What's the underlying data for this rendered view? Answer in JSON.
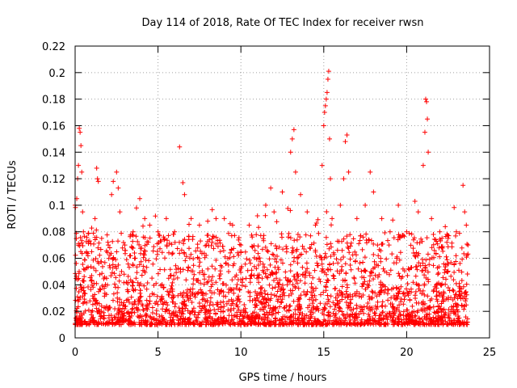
{
  "chart_data": {
    "type": "scatter",
    "title": "Day 114 of 2018, Rate Of TEC Index for receiver rwsn",
    "xlabel": "GPS time / hours",
    "ylabel": "ROTI / TECUs",
    "xlim": [
      0,
      25
    ],
    "ylim": [
      0,
      0.22
    ],
    "x_ticks": [
      0,
      5,
      10,
      15,
      20,
      25
    ],
    "y_ticks": [
      0,
      0.02,
      0.04,
      0.06,
      0.08,
      0.1,
      0.12,
      0.14,
      0.16,
      0.18,
      0.2,
      0.22
    ],
    "x_tick_labels": [
      "0",
      "5",
      "10",
      "15",
      "20",
      "25"
    ],
    "y_tick_labels": [
      "0",
      "0.02",
      "0.04",
      "0.06",
      "0.08",
      "0.1",
      "0.12",
      "0.14",
      "0.16",
      "0.18",
      "0.2",
      "0.22"
    ],
    "grid": true,
    "marker": "+",
    "marker_color": "#ff0000",
    "data_x_range": [
      0,
      23.7
    ],
    "typical_range": [
      0.01,
      0.07
    ],
    "series": [
      {
        "values": [
          [
            0.0,
            0.1
          ],
          [
            0.1,
            0.105
          ],
          [
            0.15,
            0.12
          ],
          [
            0.2,
            0.13
          ],
          [
            0.25,
            0.158
          ],
          [
            0.3,
            0.155
          ],
          [
            0.35,
            0.145
          ],
          [
            0.4,
            0.125
          ],
          [
            0.45,
            0.095
          ],
          [
            0.5,
            0.08
          ],
          [
            1.0,
            0.065
          ],
          [
            1.2,
            0.09
          ],
          [
            1.3,
            0.128
          ],
          [
            1.35,
            0.12
          ],
          [
            1.4,
            0.118
          ],
          [
            1.6,
            0.075
          ],
          [
            2.0,
            0.07
          ],
          [
            2.2,
            0.108
          ],
          [
            2.3,
            0.118
          ],
          [
            2.5,
            0.125
          ],
          [
            2.6,
            0.113
          ],
          [
            2.7,
            0.095
          ],
          [
            3.0,
            0.07
          ],
          [
            3.5,
            0.08
          ],
          [
            3.7,
            0.098
          ],
          [
            3.9,
            0.105
          ],
          [
            4.2,
            0.09
          ],
          [
            4.5,
            0.085
          ],
          [
            5.0,
            0.08
          ],
          [
            5.5,
            0.09
          ],
          [
            6.0,
            0.08
          ],
          [
            6.3,
            0.144
          ],
          [
            6.5,
            0.117
          ],
          [
            6.6,
            0.108
          ],
          [
            7.0,
            0.09
          ],
          [
            7.5,
            0.085
          ],
          [
            8.0,
            0.088
          ],
          [
            8.5,
            0.09
          ],
          [
            9.0,
            0.09
          ],
          [
            9.5,
            0.085
          ],
          [
            10.0,
            0.07
          ],
          [
            10.5,
            0.085
          ],
          [
            11.0,
            0.092
          ],
          [
            11.5,
            0.1
          ],
          [
            11.8,
            0.113
          ],
          [
            12.0,
            0.095
          ],
          [
            12.5,
            0.11
          ],
          [
            13.0,
            0.14
          ],
          [
            13.1,
            0.15
          ],
          [
            13.2,
            0.157
          ],
          [
            13.3,
            0.125
          ],
          [
            13.6,
            0.108
          ],
          [
            14.0,
            0.095
          ],
          [
            14.5,
            0.085
          ],
          [
            14.9,
            0.13
          ],
          [
            15.0,
            0.16
          ],
          [
            15.05,
            0.17
          ],
          [
            15.1,
            0.175
          ],
          [
            15.15,
            0.18
          ],
          [
            15.2,
            0.185
          ],
          [
            15.25,
            0.195
          ],
          [
            15.3,
            0.201
          ],
          [
            15.35,
            0.15
          ],
          [
            15.4,
            0.12
          ],
          [
            15.5,
            0.09
          ],
          [
            16.0,
            0.1
          ],
          [
            16.2,
            0.12
          ],
          [
            16.3,
            0.148
          ],
          [
            16.4,
            0.153
          ],
          [
            16.5,
            0.125
          ],
          [
            17.0,
            0.09
          ],
          [
            17.5,
            0.1
          ],
          [
            17.8,
            0.125
          ],
          [
            18.0,
            0.11
          ],
          [
            18.5,
            0.09
          ],
          [
            19.0,
            0.08
          ],
          [
            19.5,
            0.1
          ],
          [
            20.0,
            0.08
          ],
          [
            20.5,
            0.103
          ],
          [
            20.7,
            0.095
          ],
          [
            21.0,
            0.13
          ],
          [
            21.1,
            0.155
          ],
          [
            21.15,
            0.18
          ],
          [
            21.2,
            0.178
          ],
          [
            21.25,
            0.165
          ],
          [
            21.3,
            0.14
          ],
          [
            21.5,
            0.09
          ],
          [
            22.0,
            0.08
          ],
          [
            22.5,
            0.075
          ],
          [
            23.0,
            0.08
          ],
          [
            23.4,
            0.115
          ],
          [
            23.5,
            0.095
          ],
          [
            23.6,
            0.085
          ],
          [
            23.7,
            0.07
          ]
        ]
      }
    ]
  }
}
